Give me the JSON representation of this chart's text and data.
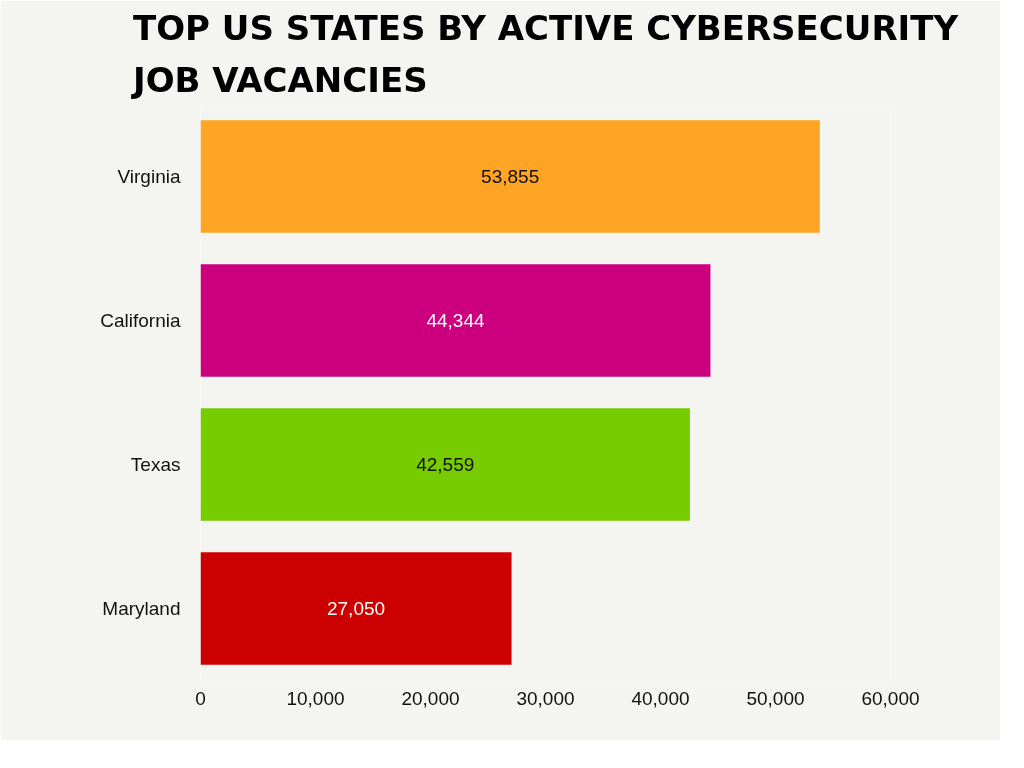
{
  "chart_data": {
    "type": "bar",
    "orientation": "horizontal",
    "title": "TOP US STATES BY ACTIVE CYBERSECURITY JOB VACANCIES",
    "categories": [
      "Virginia",
      "California",
      "Texas",
      "Maryland"
    ],
    "values": [
      53855,
      44344,
      42559,
      27050
    ],
    "colors": [
      "#ffa424",
      "#cc007f",
      "#77cc00",
      "#cc0000"
    ],
    "value_labels": [
      "53,855",
      "44,344",
      "42,559",
      "27,050"
    ],
    "xlim": [
      0,
      60000
    ],
    "xticks": [
      0,
      {
        "value": 10000,
        "label": "10,000"
      },
      {
        "value": 20000,
        "label": "20,000"
      },
      {
        "value": 30000,
        "label": "30,000"
      },
      {
        "value": 40000,
        "label": "40,000"
      },
      {
        "value": 50000,
        "label": "50,000"
      },
      {
        "value": 60000,
        "label": "60,000"
      }
    ],
    "grid": false
  }
}
